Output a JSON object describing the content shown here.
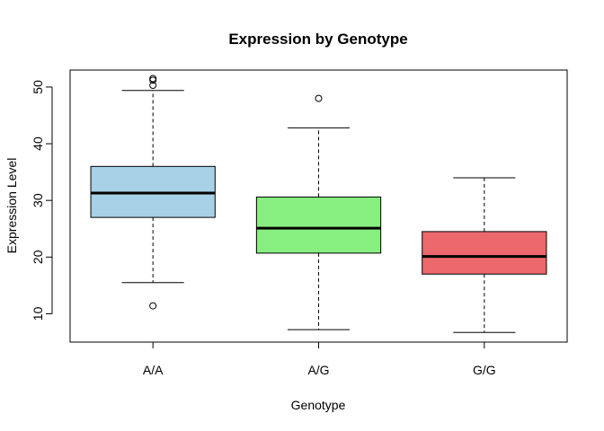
{
  "chart_data": {
    "type": "box",
    "title": "Expression by Genotype",
    "xlabel": "Genotype",
    "ylabel": "Expression Level",
    "categories": [
      "A/A",
      "A/G",
      "G/G"
    ],
    "ylim": [
      5,
      53
    ],
    "yticks": [
      10,
      20,
      30,
      40,
      50
    ],
    "grid": false,
    "legend": "none",
    "boxes": [
      {
        "category": "A/A",
        "color": "#a6d1e6",
        "whisker_low": 15.5,
        "q1": 27.0,
        "median": 31.3,
        "q3": 36.0,
        "whisker_high": 49.4,
        "outliers": [
          11.4,
          50.3,
          51.2,
          51.5
        ]
      },
      {
        "category": "A/G",
        "color": "#86ef80",
        "whisker_low": 7.2,
        "q1": 20.7,
        "median": 25.1,
        "q3": 30.6,
        "whisker_high": 42.8,
        "outliers": [
          48.0
        ]
      },
      {
        "category": "G/G",
        "color": "#ec686c",
        "whisker_low": 6.7,
        "q1": 17.0,
        "median": 20.1,
        "q3": 24.5,
        "whisker_high": 34.0,
        "outliers": []
      }
    ]
  }
}
